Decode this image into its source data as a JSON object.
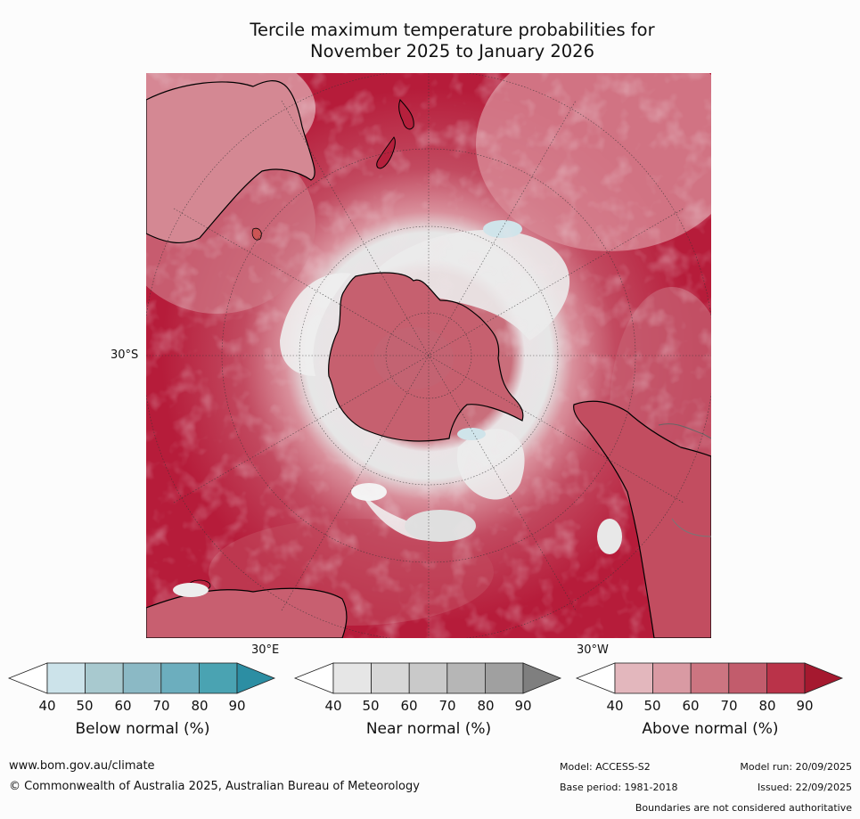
{
  "title_line1": "Tercile maximum temperature probabilities for",
  "title_line2": "November 2025 to January 2026",
  "map": {
    "label_30S": "30°S",
    "label_30E": "30°E",
    "label_30W": "30°W"
  },
  "colorbars": {
    "below": {
      "title": "Below normal (%)",
      "ticks": [
        "40",
        "50",
        "60",
        "70",
        "80",
        "90"
      ],
      "colors": [
        "#ffffff",
        "#cce3ea",
        "#a8c9cf",
        "#8bb9c5",
        "#6caebe",
        "#4aa3b2",
        "#2c8ea3"
      ]
    },
    "near": {
      "title": "Near normal (%)",
      "ticks": [
        "40",
        "50",
        "60",
        "70",
        "80",
        "90"
      ],
      "colors": [
        "#ffffff",
        "#e6e6e6",
        "#d7d7d7",
        "#c9c9c9",
        "#b6b6b6",
        "#a0a0a0",
        "#7f7f7f"
      ]
    },
    "above": {
      "title": "Above normal (%)",
      "ticks": [
        "40",
        "50",
        "60",
        "70",
        "80",
        "90"
      ],
      "colors": [
        "#ffffff",
        "#e3b7bd",
        "#d99aa3",
        "#cc7581",
        "#c25c6c",
        "#ba3349",
        "#a5192f"
      ]
    }
  },
  "footer": {
    "website": "www.bom.gov.au/climate",
    "copyright": "© Commonwealth of Australia 2025, Australian Bureau of Meteorology",
    "model": "Model: ACCESS-S2",
    "model_run": "Model run: 20/09/2025",
    "base_period": "Base period: 1981-2018",
    "issued": "Issued: 22/09/2025",
    "disclaimer": "Boundaries are not considered authoritative"
  }
}
